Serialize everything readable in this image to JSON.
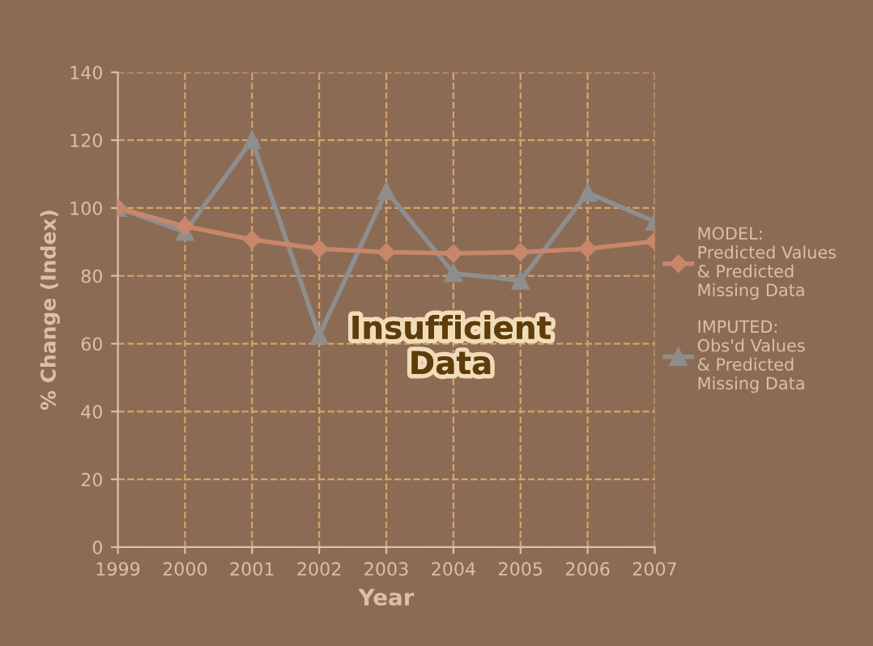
{
  "chart_data": {
    "type": "line",
    "xlabel": "Year",
    "ylabel": "% Change (Index)",
    "categories": [
      "1999",
      "2000",
      "2001",
      "2002",
      "2003",
      "2004",
      "2005",
      "2006",
      "2007"
    ],
    "series": [
      {
        "name": "MODEL:\nPredicted Values\n& Predicted\nMissing Data",
        "color": "#c8866a",
        "marker": "diamond",
        "values": [
          100,
          94.6,
          90.7,
          88,
          87,
          86.6,
          87,
          88,
          90.2
        ]
      },
      {
        "name": "IMPUTED:\nObs'd Values\n& Predicted\nMissing Data",
        "color": "#8e8e8e",
        "marker": "triangle",
        "values": [
          100,
          93,
          120,
          62.4,
          105,
          80.8,
          78.6,
          104.5,
          96
        ]
      }
    ],
    "ylim": [
      0,
      140
    ],
    "yticks": [
      0,
      20,
      40,
      60,
      80,
      100,
      120,
      140
    ],
    "grid": true,
    "legend": "right",
    "annotations": [
      "Insufficient\nData"
    ]
  }
}
